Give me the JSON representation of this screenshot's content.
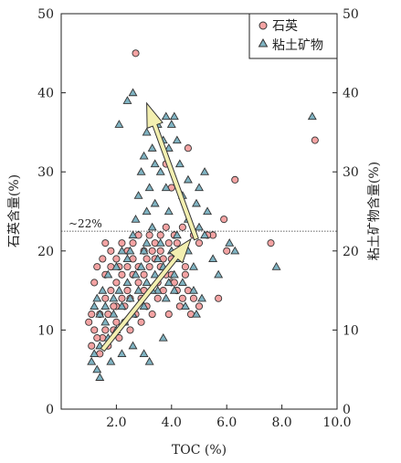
{
  "chart_data": {
    "type": "scatter",
    "xlabel": "TOC (%)",
    "ylabel_left": "石英含量(%)",
    "ylabel_right": "粘土矿物含量(%)",
    "xlim": [
      0,
      10
    ],
    "ylim": [
      0,
      50
    ],
    "x_ticks": [
      {
        "v": 2,
        "label": "2.0"
      },
      {
        "v": 4,
        "label": "4.0"
      },
      {
        "v": 6,
        "label": "6.0"
      },
      {
        "v": 8,
        "label": "8.0"
      },
      {
        "v": 10,
        "label": "10.0"
      }
    ],
    "y_ticks_left": [
      {
        "v": 0,
        "label": "0"
      },
      {
        "v": 10,
        "label": "10"
      },
      {
        "v": 20,
        "label": "20"
      },
      {
        "v": 30,
        "label": "30"
      },
      {
        "v": 40,
        "label": "40"
      },
      {
        "v": 50,
        "label": "50"
      }
    ],
    "y_ticks_right": [
      {
        "v": 0,
        "label": "0"
      },
      {
        "v": 10,
        "label": "10"
      },
      {
        "v": 20,
        "label": "20"
      },
      {
        "v": 30,
        "label": "30"
      },
      {
        "v": 40,
        "label": "40"
      },
      {
        "v": 50,
        "label": "50"
      }
    ],
    "reference_line": {
      "y": 22.5,
      "label": "~22%"
    },
    "legend_position": "top-right",
    "colors": {
      "quartz_fill": "#f4a3a3",
      "clay_fill": "#7fb3c2",
      "arrow_fill": "#f3efb0",
      "stroke": "#333333"
    },
    "trend_arrows": [
      {
        "from": [
          1.5,
          7.5
        ],
        "to": [
          4.7,
          21.5
        ]
      },
      {
        "from": [
          4.9,
          21.5
        ],
        "to": [
          3.1,
          38.7
        ]
      }
    ],
    "series": [
      {
        "name": "石英",
        "marker": "circle",
        "points": [
          [
            2.7,
            45
          ],
          [
            9.2,
            34
          ],
          [
            4.6,
            33
          ],
          [
            6.3,
            29
          ],
          [
            3.8,
            31
          ],
          [
            4.0,
            28
          ],
          [
            5.9,
            24
          ],
          [
            7.6,
            21
          ],
          [
            5.5,
            22
          ],
          [
            5.3,
            22
          ],
          [
            5.0,
            21
          ],
          [
            4.8,
            22
          ],
          [
            6.0,
            20
          ],
          [
            5.7,
            14
          ],
          [
            4.4,
            23
          ],
          [
            4.2,
            21
          ],
          [
            4.5,
            18
          ],
          [
            4.0,
            19
          ],
          [
            3.8,
            23
          ],
          [
            3.6,
            22
          ],
          [
            3.4,
            21
          ],
          [
            3.2,
            22
          ],
          [
            3.0,
            20
          ],
          [
            2.8,
            22
          ],
          [
            2.6,
            21
          ],
          [
            2.4,
            20
          ],
          [
            2.2,
            21
          ],
          [
            2.0,
            19
          ],
          [
            1.8,
            20
          ],
          [
            1.6,
            21
          ],
          [
            1.5,
            19
          ],
          [
            1.3,
            18
          ],
          [
            1.2,
            16
          ],
          [
            1.1,
            12
          ],
          [
            1.0,
            11
          ],
          [
            1.2,
            10
          ],
          [
            1.4,
            12
          ],
          [
            1.6,
            14
          ],
          [
            1.8,
            15
          ],
          [
            2.0,
            16
          ],
          [
            2.2,
            17
          ],
          [
            2.4,
            18
          ],
          [
            2.6,
            19
          ],
          [
            2.8,
            18
          ],
          [
            3.0,
            17
          ],
          [
            3.2,
            18
          ],
          [
            3.4,
            19
          ],
          [
            3.6,
            18
          ],
          [
            3.8,
            17
          ],
          [
            4.0,
            16
          ],
          [
            4.2,
            15
          ],
          [
            4.4,
            14
          ],
          [
            4.6,
            15
          ],
          [
            4.8,
            14
          ],
          [
            5.0,
            13
          ],
          [
            4.7,
            12
          ],
          [
            4.3,
            13
          ],
          [
            3.9,
            12
          ],
          [
            3.5,
            14
          ],
          [
            3.1,
            13
          ],
          [
            2.7,
            12
          ],
          [
            2.3,
            11
          ],
          [
            1.9,
            10
          ],
          [
            1.5,
            9
          ],
          [
            1.3,
            9
          ],
          [
            1.1,
            8
          ],
          [
            1.4,
            7
          ],
          [
            1.7,
            8
          ],
          [
            2.1,
            9
          ],
          [
            2.5,
            10
          ],
          [
            2.9,
            11
          ],
          [
            3.3,
            12
          ],
          [
            3.7,
            15
          ],
          [
            4.1,
            16
          ],
          [
            4.5,
            17
          ],
          [
            2.0,
            13
          ],
          [
            1.7,
            12
          ],
          [
            2.5,
            14
          ],
          [
            3.0,
            15
          ],
          [
            3.5,
            16
          ],
          [
            4.0,
            17
          ],
          [
            2.2,
            14
          ],
          [
            1.9,
            13
          ],
          [
            2.8,
            16
          ],
          [
            3.3,
            20
          ],
          [
            3.9,
            21
          ],
          [
            4.3,
            20
          ],
          [
            2.6,
            17
          ],
          [
            2.1,
            18
          ],
          [
            1.6,
            17
          ],
          [
            1.8,
            18
          ],
          [
            3.6,
            20
          ],
          [
            2.4,
            15
          ],
          [
            2.0,
            11
          ],
          [
            1.6,
            10
          ],
          [
            3.1,
            19
          ],
          [
            4.1,
            22
          ],
          [
            3.7,
            19
          ],
          [
            2.9,
            14
          ],
          [
            2.3,
            13
          ]
        ]
      },
      {
        "name": "粘土矿物",
        "marker": "triangle",
        "points": [
          [
            2.6,
            40
          ],
          [
            2.4,
            39
          ],
          [
            2.1,
            36
          ],
          [
            3.8,
            37
          ],
          [
            4.1,
            37
          ],
          [
            9.1,
            37
          ],
          [
            3.5,
            36
          ],
          [
            4.0,
            36
          ],
          [
            3.1,
            35
          ],
          [
            3.3,
            33
          ],
          [
            3.7,
            34
          ],
          [
            4.2,
            34
          ],
          [
            3.0,
            32
          ],
          [
            3.4,
            31
          ],
          [
            3.9,
            33
          ],
          [
            4.3,
            31
          ],
          [
            2.9,
            30
          ],
          [
            3.6,
            30
          ],
          [
            4.6,
            29
          ],
          [
            5.2,
            30
          ],
          [
            5.0,
            28
          ],
          [
            3.2,
            28
          ],
          [
            3.8,
            28
          ],
          [
            4.4,
            27
          ],
          [
            2.8,
            27
          ],
          [
            3.4,
            26
          ],
          [
            4.9,
            26
          ],
          [
            5.3,
            25
          ],
          [
            2.7,
            24
          ],
          [
            3.1,
            25
          ],
          [
            3.9,
            25
          ],
          [
            4.6,
            24
          ],
          [
            5.0,
            23
          ],
          [
            3.3,
            23
          ],
          [
            2.6,
            22
          ],
          [
            4.2,
            22
          ],
          [
            5.2,
            22
          ],
          [
            6.1,
            21
          ],
          [
            6.3,
            20
          ],
          [
            7.8,
            18
          ],
          [
            5.7,
            17
          ],
          [
            5.5,
            19
          ],
          [
            4.8,
            18
          ],
          [
            4.0,
            20
          ],
          [
            3.6,
            21
          ],
          [
            3.0,
            20
          ],
          [
            2.4,
            19
          ],
          [
            2.0,
            18
          ],
          [
            1.7,
            17
          ],
          [
            1.5,
            15
          ],
          [
            1.3,
            14
          ],
          [
            1.2,
            13
          ],
          [
            1.4,
            12
          ],
          [
            1.6,
            11
          ],
          [
            1.9,
            12
          ],
          [
            2.2,
            13
          ],
          [
            2.5,
            14
          ],
          [
            2.8,
            15
          ],
          [
            3.1,
            16
          ],
          [
            3.4,
            17
          ],
          [
            3.7,
            18
          ],
          [
            4.1,
            17
          ],
          [
            4.4,
            16
          ],
          [
            4.8,
            15
          ],
          [
            5.1,
            14
          ],
          [
            4.9,
            12
          ],
          [
            4.5,
            13
          ],
          [
            3.8,
            14
          ],
          [
            3.5,
            15
          ],
          [
            3.0,
            13
          ],
          [
            2.6,
            12
          ],
          [
            2.3,
            11
          ],
          [
            2.0,
            10
          ],
          [
            1.7,
            9
          ],
          [
            1.4,
            8
          ],
          [
            1.2,
            7
          ],
          [
            1.1,
            6
          ],
          [
            1.3,
            5
          ],
          [
            1.4,
            4
          ],
          [
            1.8,
            6
          ],
          [
            2.2,
            7
          ],
          [
            2.6,
            8
          ],
          [
            3.0,
            7
          ],
          [
            3.2,
            6
          ],
          [
            3.7,
            9
          ],
          [
            2.4,
            16
          ],
          [
            2.9,
            18
          ],
          [
            3.5,
            19
          ],
          [
            4.3,
            19
          ],
          [
            2.1,
            15
          ],
          [
            1.9,
            14
          ],
          [
            2.7,
            17
          ],
          [
            3.3,
            15
          ],
          [
            3.9,
            16
          ],
          [
            4.6,
            20
          ],
          [
            1.6,
            13
          ],
          [
            2.5,
            20
          ],
          [
            3.1,
            21
          ],
          [
            4.1,
            15
          ],
          [
            2.2,
            20
          ]
        ]
      }
    ]
  }
}
